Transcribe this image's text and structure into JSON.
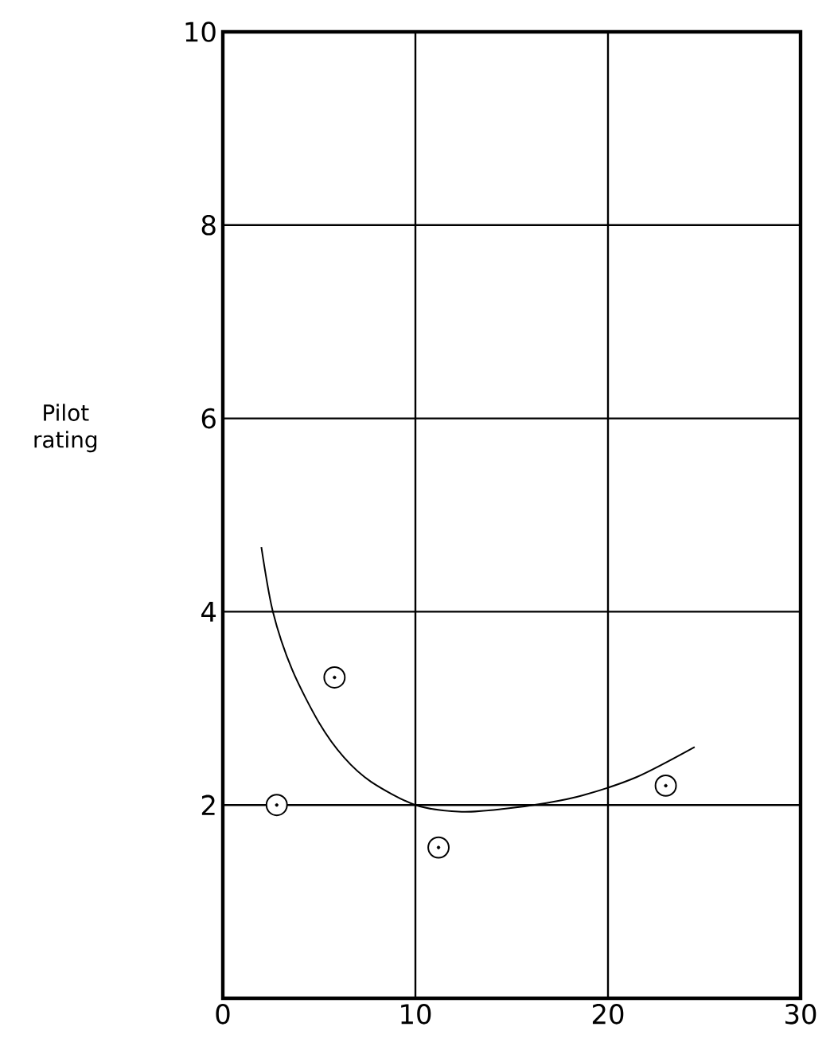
{
  "chart_data": {
    "type": "scatter",
    "xlim": [
      0,
      30
    ],
    "ylim": [
      0,
      10
    ],
    "xticks": [
      0,
      10,
      20,
      30
    ],
    "yticks": [
      2,
      4,
      6,
      8,
      10
    ],
    "ylabel": "Pilot rating",
    "grid": true,
    "marker": "circle",
    "series": [
      {
        "color": "#000000",
        "x": [
          2.8,
          5.8,
          11.2,
          23.0
        ],
        "values": [
          2.0,
          3.32,
          1.56,
          2.2
        ]
      },
      {
        "type": "line",
        "color": "#000000",
        "marker": "none",
        "x": [
          2.0,
          2.6,
          3.6,
          5.0,
          6.3,
          7.7,
          10.0,
          12.4,
          14.6,
          16.8,
          18.7,
          21.5,
          24.5
        ],
        "values": [
          4.67,
          4.0,
          3.4,
          2.85,
          2.49,
          2.24,
          2.0,
          1.93,
          1.96,
          2.02,
          2.1,
          2.29,
          2.6
        ]
      }
    ]
  }
}
